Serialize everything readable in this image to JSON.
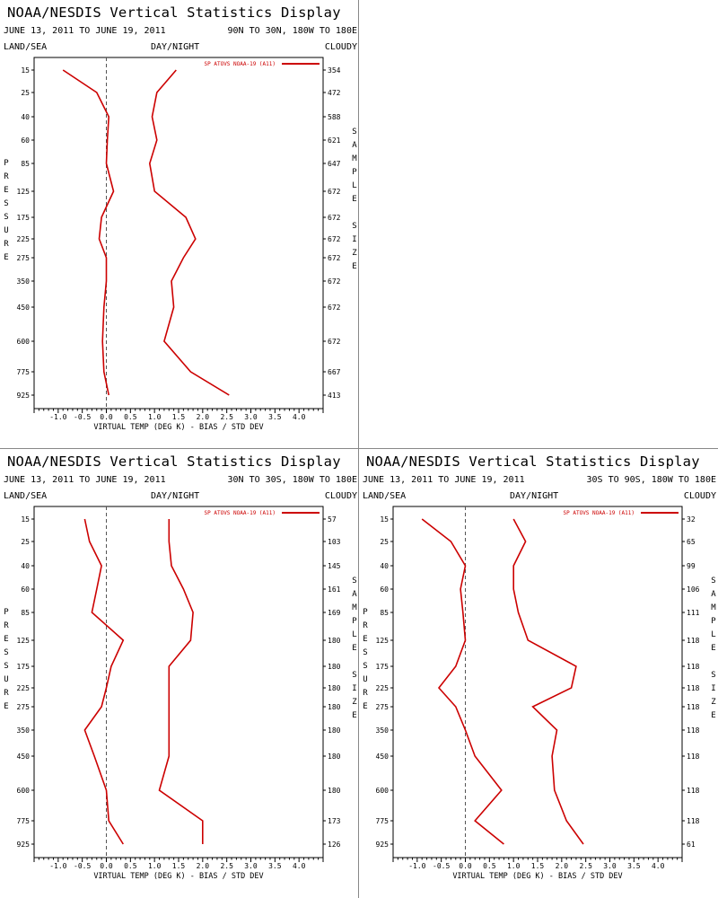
{
  "chart_data": [
    {
      "type": "line",
      "title": "NOAA/NESDIS Vertical Statistics Display",
      "date_range": "JUNE 13, 2011 TO JUNE 19, 2011",
      "region": "90N TO 30N, 180W TO 180E",
      "header_left": "LAND/SEA",
      "header_center": "DAY/NIGHT",
      "header_right": "CLOUDY",
      "ylabel": "PRESSURE",
      "ylabel_right": "SAMPLE SIZE",
      "xlabel": "VIRTUAL TEMP (DEG K) - BIAS / STD DEV",
      "xlim": [
        -1.5,
        4.5
      ],
      "xticks": [
        "-1.0",
        "-0.5",
        "0.0",
        "0.5",
        "1.0",
        "1.5",
        "2.0",
        "2.5",
        "3.0",
        "3.5",
        "4.0"
      ],
      "pressure_levels": [
        "15",
        "25",
        "40",
        "60",
        "85",
        "125",
        "175",
        "225",
        "275",
        "350",
        "450",
        "600",
        "775",
        "925"
      ],
      "sample_size": [
        "354",
        "472",
        "588",
        "621",
        "647",
        "672",
        "672",
        "672",
        "672",
        "672",
        "672",
        "672",
        "667",
        "413"
      ],
      "legend": "SP ATOVS NOAA-19 (A11)",
      "series": [
        {
          "name": "bias",
          "values": [
            -0.9,
            -0.2,
            0.05,
            0.02,
            0.0,
            0.15,
            -0.1,
            -0.15,
            0.0,
            0.0,
            -0.05,
            -0.08,
            -0.05,
            0.05
          ]
        },
        {
          "name": "std_dev",
          "values": [
            1.45,
            1.05,
            0.95,
            1.05,
            0.9,
            1.0,
            1.65,
            1.85,
            1.6,
            1.35,
            1.4,
            1.2,
            1.75,
            2.55
          ]
        }
      ]
    },
    {
      "type": "line",
      "title": "NOAA/NESDIS Vertical Statistics Display",
      "date_range": "JUNE 13, 2011 TO JUNE 19, 2011",
      "region": "30N TO 30S, 180W TO 180E",
      "header_left": "LAND/SEA",
      "header_center": "DAY/NIGHT",
      "header_right": "CLOUDY",
      "ylabel": "PRESSURE",
      "ylabel_right": "SAMPLE SIZE",
      "xlabel": "VIRTUAL TEMP (DEG K) - BIAS / STD DEV",
      "xlim": [
        -1.5,
        4.5
      ],
      "xticks": [
        "-1.0",
        "-0.5",
        "0.0",
        "0.5",
        "1.0",
        "1.5",
        "2.0",
        "2.5",
        "3.0",
        "3.5",
        "4.0"
      ],
      "pressure_levels": [
        "15",
        "25",
        "40",
        "60",
        "85",
        "125",
        "175",
        "225",
        "275",
        "350",
        "450",
        "600",
        "775",
        "925"
      ],
      "sample_size": [
        "57",
        "103",
        "145",
        "161",
        "169",
        "180",
        "180",
        "180",
        "180",
        "180",
        "180",
        "180",
        "173",
        "126"
      ],
      "legend": "SP ATOVS NOAA-19 (A11)",
      "series": [
        {
          "name": "bias",
          "values": [
            -0.45,
            -0.35,
            -0.1,
            -0.2,
            -0.3,
            0.35,
            0.1,
            0.0,
            -0.1,
            -0.45,
            -0.25,
            0.0,
            0.05,
            0.35
          ]
        },
        {
          "name": "std_dev",
          "values": [
            1.3,
            1.3,
            1.35,
            1.6,
            1.8,
            1.75,
            1.3,
            1.3,
            1.3,
            1.3,
            1.3,
            1.1,
            2.0,
            2.0
          ]
        }
      ]
    },
    {
      "type": "line",
      "title": "NOAA/NESDIS Vertical Statistics Display",
      "date_range": "JUNE 13, 2011 TO JUNE 19, 2011",
      "region": "30S TO 90S, 180W TO 180E",
      "header_left": "LAND/SEA",
      "header_center": "DAY/NIGHT",
      "header_right": "CLOUDY",
      "ylabel": "PRESSURE",
      "ylabel_right": "SAMPLE SIZE",
      "xlabel": "VIRTUAL TEMP (DEG K) - BIAS / STD DEV",
      "xlim": [
        -1.5,
        4.5
      ],
      "xticks": [
        "-1.0",
        "-0.5",
        "0.0",
        "0.5",
        "1.0",
        "1.5",
        "2.0",
        "2.5",
        "3.0",
        "3.5",
        "4.0"
      ],
      "pressure_levels": [
        "15",
        "25",
        "40",
        "60",
        "85",
        "125",
        "175",
        "225",
        "275",
        "350",
        "450",
        "600",
        "775",
        "925"
      ],
      "sample_size": [
        "32",
        "65",
        "99",
        "106",
        "111",
        "118",
        "118",
        "118",
        "118",
        "118",
        "118",
        "118",
        "118",
        "61"
      ],
      "legend": "SP ATOVS NOAA-19 (A11)",
      "series": [
        {
          "name": "bias",
          "values": [
            -0.9,
            -0.3,
            0.0,
            -0.1,
            -0.05,
            0.0,
            -0.2,
            -0.55,
            -0.2,
            0.0,
            0.2,
            0.75,
            0.2,
            0.8
          ]
        },
        {
          "name": "std_dev",
          "values": [
            1.0,
            1.25,
            1.0,
            1.0,
            1.1,
            1.3,
            2.3,
            2.2,
            1.4,
            1.9,
            1.8,
            1.85,
            2.1,
            2.45
          ]
        }
      ]
    }
  ],
  "colors": {
    "series": "#cc0000",
    "axis": "#000000",
    "zero_line": "#555555",
    "divider": "#888888"
  }
}
